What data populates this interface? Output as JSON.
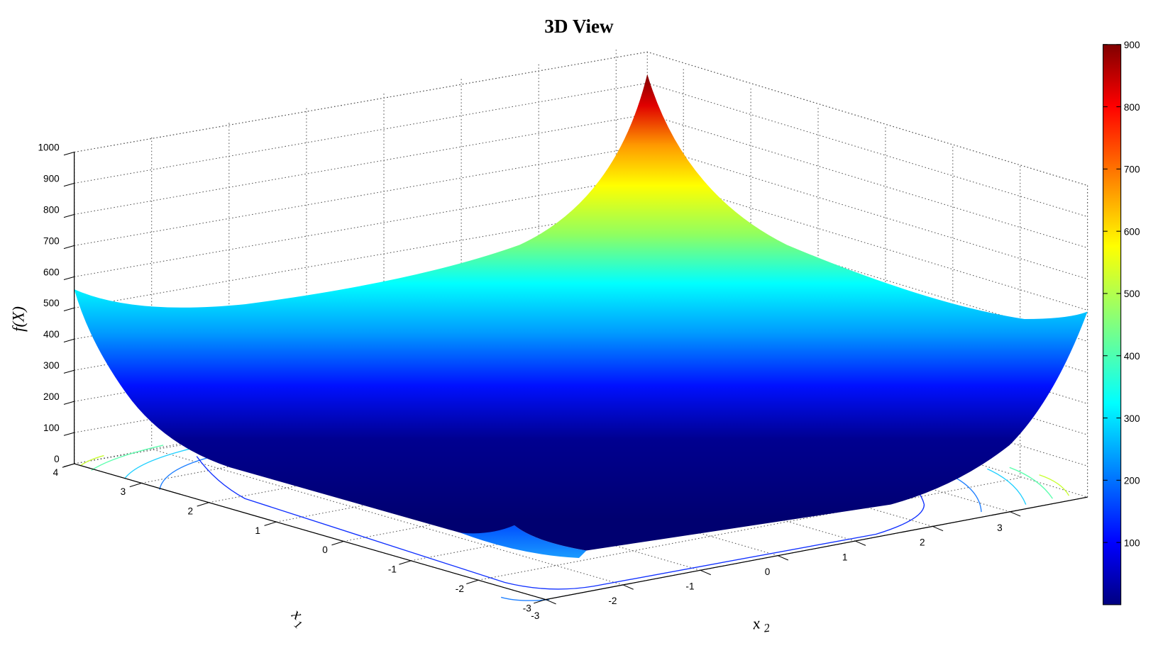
{
  "chart_data": {
    "type": "surface",
    "title": "3D View",
    "xlabel": "x",
    "xlabel_sub": "1",
    "ylabel": "x",
    "ylabel_sub": "2",
    "zlabel": "f(X)",
    "zlim": [
      0,
      1000
    ],
    "zticks": [
      "0",
      "100",
      "200",
      "300",
      "400",
      "500",
      "600",
      "700",
      "800",
      "900",
      "1000"
    ],
    "x1_ticks": [
      "4",
      "3",
      "2",
      "1",
      "0",
      "-1",
      "-2",
      "-3"
    ],
    "x2_ticks": [
      "-3",
      "-2",
      "-1",
      "0",
      "1",
      "2",
      "3"
    ],
    "x1_range": [
      -3,
      4
    ],
    "x2_range": [
      -3,
      4
    ],
    "colormap": "jet",
    "colorbar": {
      "ticks": [
        "100",
        "200",
        "300",
        "400",
        "500",
        "600",
        "700",
        "800",
        "900"
      ],
      "range": [
        0,
        900
      ]
    },
    "surface_points": [
      {
        "x1": 4,
        "x2": 4,
        "z": 900,
        "label": "peak"
      },
      {
        "x1": 4,
        "x2": -3,
        "z": 560
      },
      {
        "x1": -3,
        "x2": 4,
        "z": 470
      },
      {
        "x1": -3,
        "x2": -3,
        "z": 110
      }
    ],
    "floor_contours": true,
    "grid": true
  }
}
